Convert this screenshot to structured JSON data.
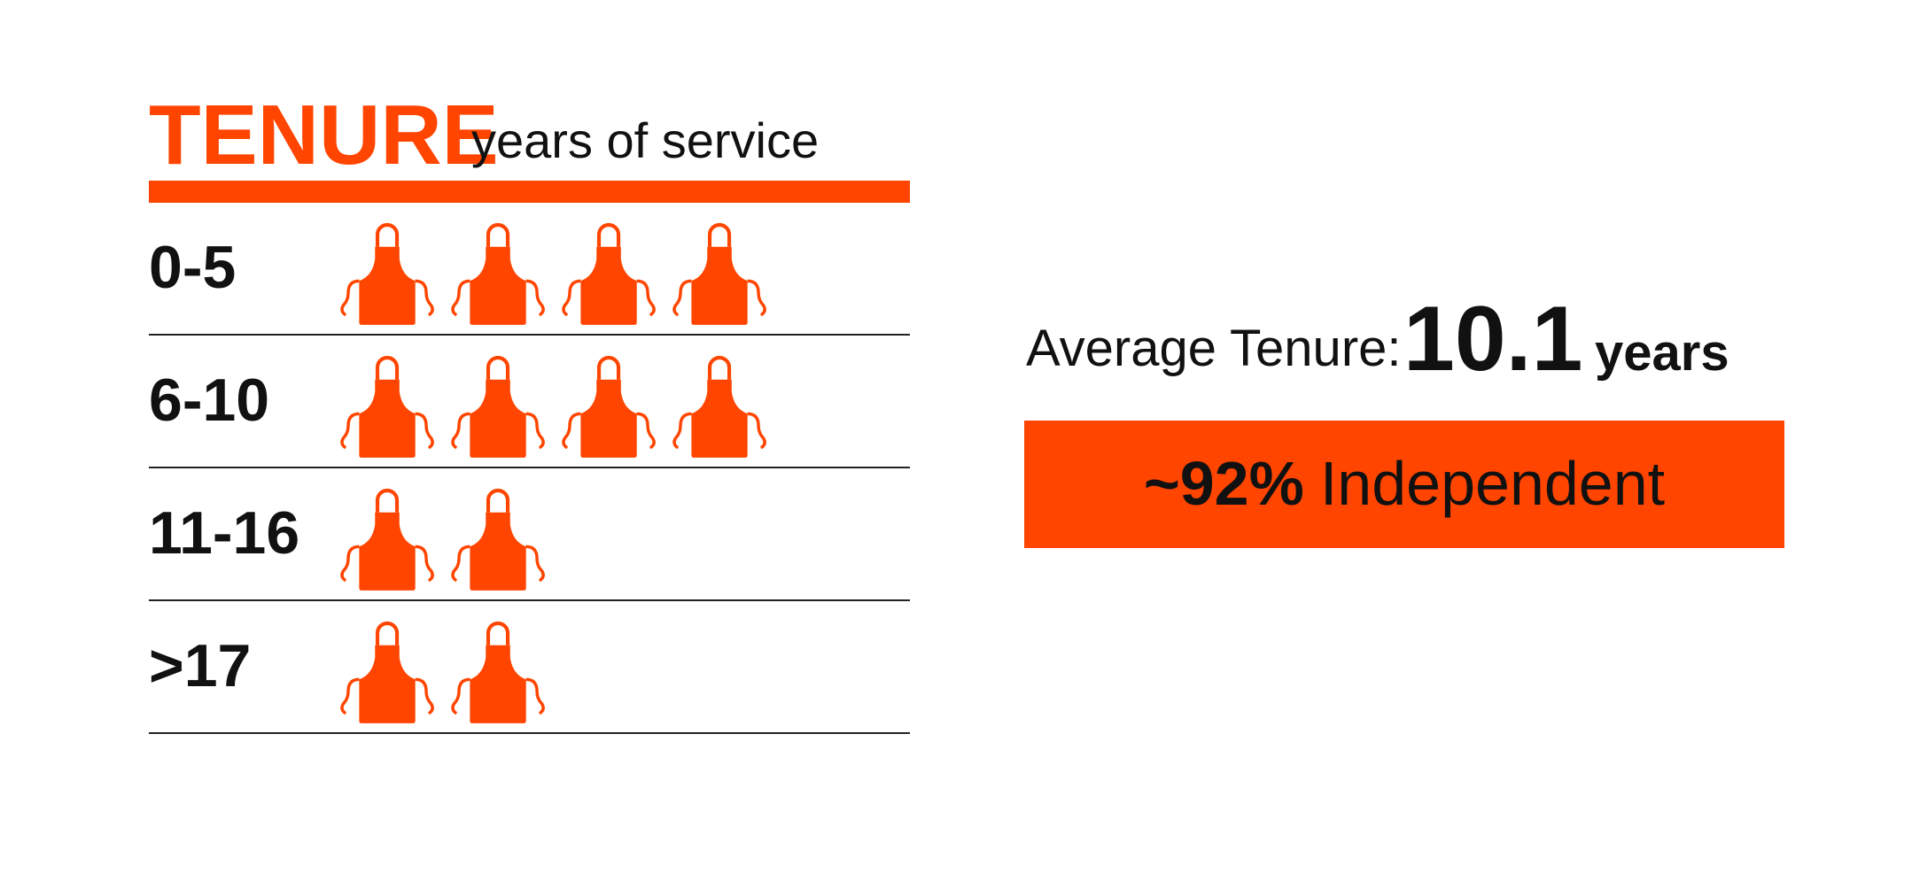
{
  "chart_data": {
    "type": "pictograph",
    "title": "TENURE",
    "subtitle": "years of service",
    "categories": [
      "0-5",
      "6-10",
      "11-16",
      ">17"
    ],
    "values": [
      4,
      4,
      2,
      2
    ],
    "color": "#ff4500"
  },
  "summary": {
    "label": "Average Tenure:",
    "value": "10.1",
    "unit": "years",
    "badge_value": "~92%",
    "badge_text": "Independent"
  }
}
